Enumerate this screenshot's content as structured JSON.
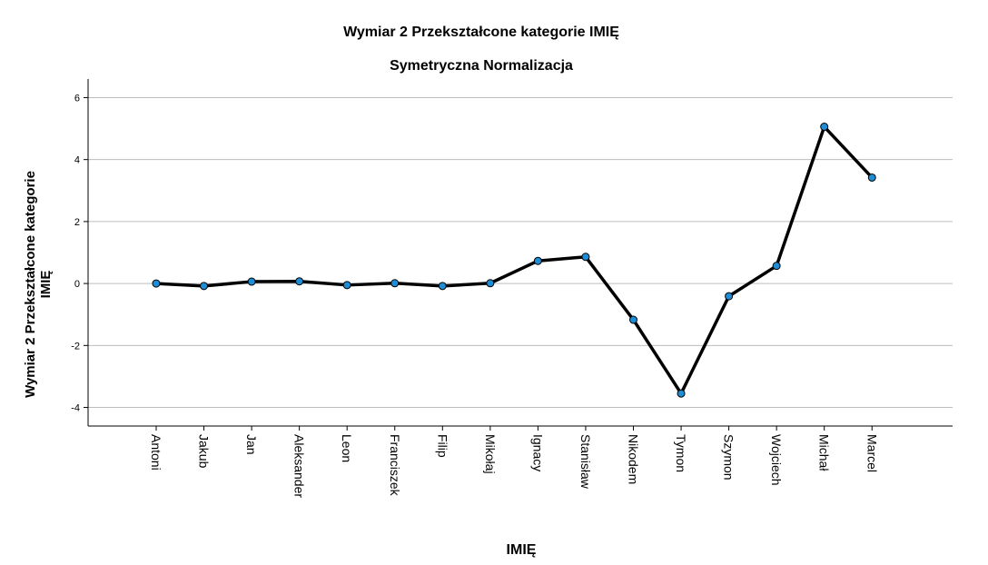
{
  "chart_data": {
    "type": "line",
    "title": "Wymiar 2 Przekształcone kategorie IMIĘ",
    "subtitle": "Symetryczna Normalizacja",
    "xlabel": "IMIĘ",
    "ylabel_line1": "Wymiar 2 Przekształcone kategorie",
    "ylabel_line2": "IMIĘ",
    "categories": [
      "Antoni",
      "Jakub",
      "Jan",
      "Aleksander",
      "Leon",
      "Franciszek",
      "Filip",
      "Mikołaj",
      "Ignacy",
      "Stanisław",
      "Nikodem",
      "Tymon",
      "Szymon",
      "Wojciech",
      "Michał",
      "Marcel"
    ],
    "values": [
      0.0,
      -0.08,
      0.06,
      0.07,
      -0.05,
      0.01,
      -0.08,
      0.01,
      0.73,
      0.86,
      -1.17,
      -3.55,
      -0.41,
      0.57,
      5.06,
      3.42
    ],
    "ylim": [
      -4.6,
      6.6
    ],
    "yticks": [
      -4,
      -2,
      0,
      2,
      4,
      6
    ],
    "ytick_labels": [
      "-4",
      "-2",
      "0",
      "2",
      "4",
      "6"
    ],
    "grid": true,
    "colors": {
      "line": "#000000",
      "marker": "#1f8dd6",
      "grid": "#bdbdbd",
      "axis": "#000000"
    }
  }
}
